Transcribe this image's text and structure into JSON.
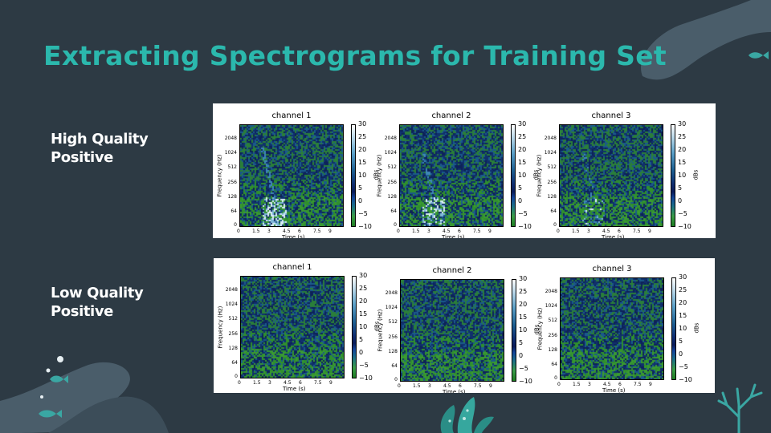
{
  "title": "Extracting Spectrograms for Training Set",
  "rows": [
    {
      "label_line1": "High Quality",
      "label_line2": "Positive"
    },
    {
      "label_line1": "Low Quality",
      "label_line2": "Positive"
    }
  ],
  "spectrogram": {
    "channel_titles": [
      "channel 1",
      "channel 2",
      "channel 3"
    ],
    "ylabel": "Frequency (Hz)",
    "xlabel": "Time (s)",
    "yticks": [
      "2048",
      "1024",
      "512",
      "256",
      "128",
      "64",
      "0"
    ],
    "xticks": [
      "0",
      "1.5",
      "3",
      "4.5",
      "6",
      "7.5",
      "9"
    ],
    "colorbar_label": "dBs",
    "colorbar_ticks": [
      "30",
      "25",
      "20",
      "15",
      "10",
      "5",
      "0",
      "−5",
      "−10"
    ]
  },
  "colors": {
    "background": "#2d3a44",
    "title": "#2bb8ad",
    "accent": "#3aa7a3"
  }
}
